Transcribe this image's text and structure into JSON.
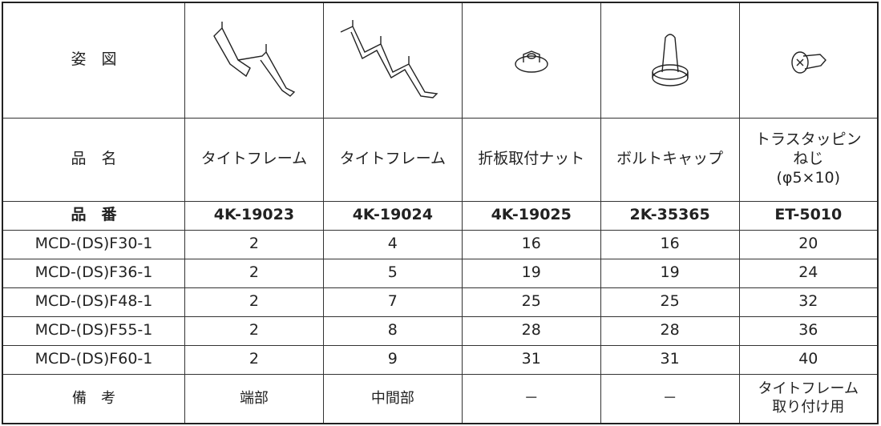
{
  "header": {
    "figure_label": "姿　図",
    "name_label": "品　名",
    "part_number_label": "品　番",
    "remarks_label": "備　考"
  },
  "parts": [
    {
      "name": "タイトフレーム",
      "part_number": "4K-19023",
      "remark": "端部"
    },
    {
      "name": "タイトフレーム",
      "part_number": "4K-19024",
      "remark": "中間部"
    },
    {
      "name": "折板取付ナット",
      "part_number": "4K-19025",
      "remark": "－"
    },
    {
      "name": "ボルトキャップ",
      "part_number": "2K-35365",
      "remark": "－"
    },
    {
      "name": "トラスタッピン\nねじ\n(φ5×10)",
      "part_number": "ET-5010",
      "remark": "タイトフレーム\n取り付け用"
    }
  ],
  "rows": [
    {
      "model": "MCD-(DS)F30-1",
      "quantities": [
        2,
        4,
        16,
        16,
        20
      ]
    },
    {
      "model": "MCD-(DS)F36-1",
      "quantities": [
        2,
        5,
        19,
        19,
        24
      ]
    },
    {
      "model": "MCD-(DS)F48-1",
      "quantities": [
        2,
        7,
        25,
        25,
        32
      ]
    },
    {
      "model": "MCD-(DS)F55-1",
      "quantities": [
        2,
        8,
        28,
        28,
        36
      ]
    },
    {
      "model": "MCD-(DS)F60-1",
      "quantities": [
        2,
        9,
        31,
        31,
        40
      ]
    }
  ]
}
